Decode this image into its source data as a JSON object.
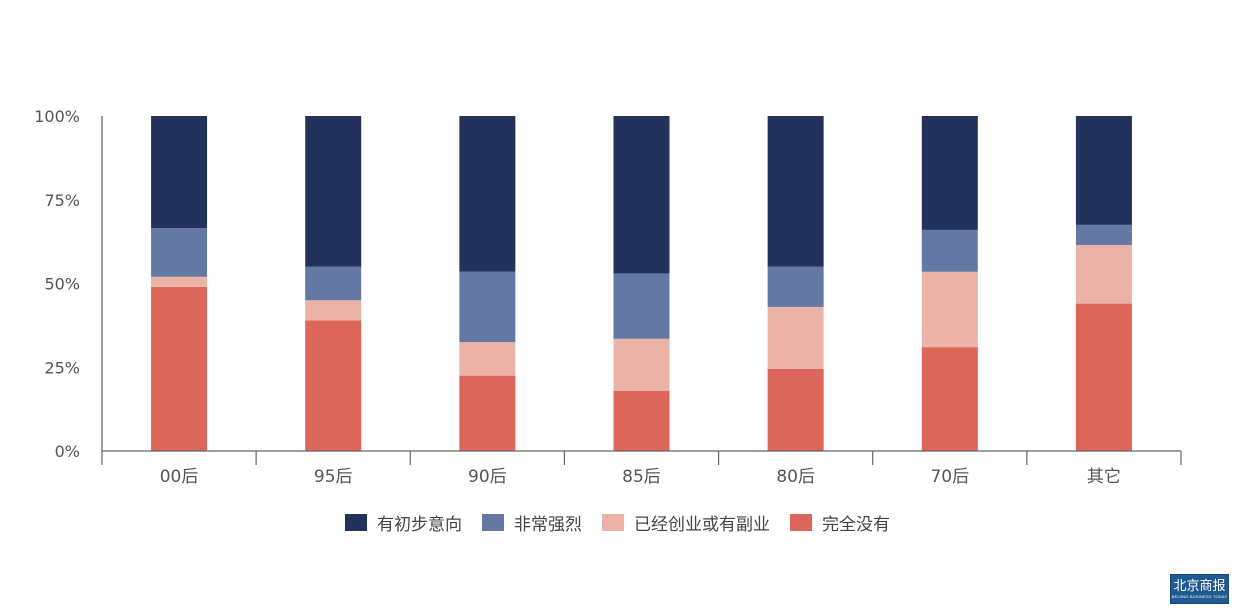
{
  "chart_data": {
    "type": "bar",
    "stacked": true,
    "title": "",
    "xlabel": "",
    "ylabel": "",
    "ylim": [
      0,
      100
    ],
    "yticks": [
      "0%",
      "25%",
      "50%",
      "75%",
      "100%"
    ],
    "categories": [
      "00后",
      "95后",
      "90后",
      "85后",
      "80后",
      "70后",
      "其它"
    ],
    "series": [
      {
        "name": "完全没有",
        "color": "#dc6659",
        "values": [
          49,
          39,
          22.5,
          18,
          24.5,
          31,
          44
        ]
      },
      {
        "name": "已经创业或有副业",
        "color": "#ebb3a6",
        "values": [
          3,
          6,
          10,
          15.5,
          18.5,
          22.5,
          17.5
        ]
      },
      {
        "name": "非常强烈",
        "color": "#6379a4",
        "values": [
          14.5,
          10,
          21,
          19.5,
          12,
          12.5,
          6
        ]
      },
      {
        "name": "有初步意向",
        "color": "#23325a",
        "values": [
          33.5,
          45,
          46.5,
          47,
          45,
          34,
          32.5
        ]
      }
    ],
    "legend_order": [
      "有初步意向",
      "非常强烈",
      "已经创业或有副业",
      "完全没有"
    ],
    "legend_position": "bottom",
    "grid": false
  },
  "watermark": {
    "title": "北京商报",
    "subtitle": "BEIJING BUSINESS TODAY"
  }
}
